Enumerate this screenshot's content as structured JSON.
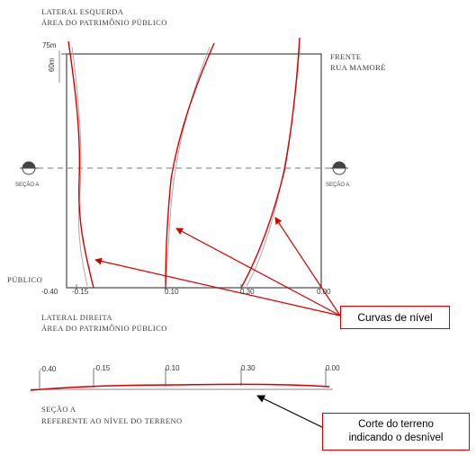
{
  "top_label": {
    "line1": "LATERAL ESQUERDA",
    "line2": "ÁREA DO PATRIMÔNIO PÚBLICO"
  },
  "right_label": {
    "line1": "FRENTE",
    "line2": "RUA MAMORÉ"
  },
  "bottom_label": {
    "line1": "LATERAL DIREITA",
    "line2": "ÁREA DO PATRIMÔNIO PÚBLICO"
  },
  "left_label_fragment": "PÚBLICO",
  "dims": {
    "top_width": "75m",
    "side_height": "60m"
  },
  "section_marker_label": "SEÇÃO A",
  "plan_levels": [
    "-0.40",
    "-0.15",
    "0.10",
    "0.30",
    "0.00"
  ],
  "section_levels": [
    "-0.40",
    "-0.15",
    "0.10",
    "0.30",
    "0.00"
  ],
  "section_caption": {
    "line1": "SEÇÃO A",
    "line2": "REFERENTE AO NÍVEL DO TERRENO"
  },
  "annotation_curves": "Curvas de nível",
  "annotation_section": {
    "line1": "Corte do terreno",
    "line2": "indicando o desnível"
  },
  "colors": {
    "annotation": "#d40000",
    "drawing": "#555555",
    "arrow_black": "#000000"
  }
}
